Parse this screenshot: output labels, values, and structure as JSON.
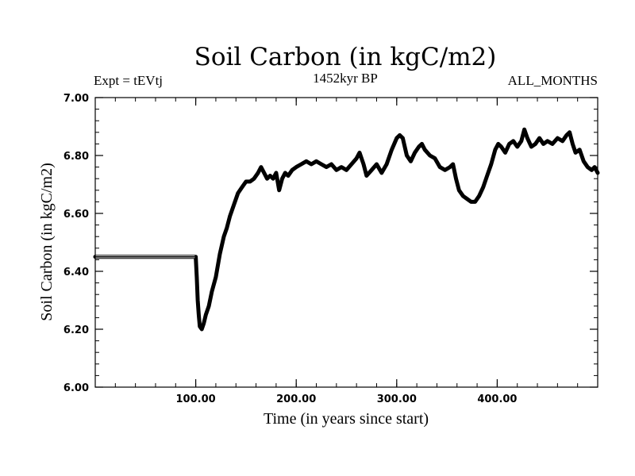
{
  "chart_data": {
    "type": "line",
    "title": "Soil Carbon (in kgC/m2)",
    "subtitle_left": "Expt = tEVtj",
    "subtitle_center": "1452kyr BP",
    "subtitle_right": "ALL_MONTHS",
    "xlabel": "Time (in years since start)",
    "ylabel": "Soil Carbon (in kgC/m2)",
    "xlim": [
      0,
      500
    ],
    "ylim": [
      6.0,
      7.0
    ],
    "x_ticks": [
      100,
      200,
      300,
      400
    ],
    "x_tick_labels": [
      "100.00",
      "200.00",
      "300.00",
      "400.00"
    ],
    "y_ticks": [
      6.0,
      6.2,
      6.4,
      6.6,
      6.8,
      7.0
    ],
    "y_tick_labels": [
      "6.00",
      "6.20",
      "6.40",
      "6.60",
      "6.80",
      "7.00"
    ],
    "x_minor_step": 20,
    "y_minor_step": 0.04,
    "line_color": "#000000",
    "series": [
      {
        "name": "Soil Carbon",
        "x": [
          0,
          50,
          99,
          100,
          101,
          102,
          103,
          104,
          106,
          108,
          110,
          113,
          116,
          120,
          124,
          128,
          131,
          134,
          138,
          142,
          146,
          150,
          154,
          158,
          162,
          165,
          168,
          171,
          174,
          177,
          180,
          183,
          186,
          189,
          192,
          196,
          200,
          205,
          210,
          215,
          220,
          225,
          230,
          235,
          240,
          245,
          250,
          255,
          260,
          263,
          267,
          270,
          275,
          280,
          285,
          290,
          295,
          300,
          303,
          306,
          310,
          314,
          318,
          322,
          325,
          328,
          333,
          338,
          343,
          348,
          353,
          356,
          359,
          362,
          366,
          370,
          374,
          378,
          382,
          386,
          390,
          394,
          398,
          401,
          404,
          408,
          412,
          416,
          420,
          424,
          427,
          430,
          434,
          438,
          442,
          446,
          450,
          455,
          460,
          465,
          469,
          472,
          475,
          478,
          482,
          486,
          490,
          494,
          497,
          500
        ],
        "y": [
          6.45,
          6.45,
          6.45,
          6.45,
          6.38,
          6.3,
          6.25,
          6.21,
          6.2,
          6.22,
          6.25,
          6.28,
          6.33,
          6.38,
          6.46,
          6.52,
          6.55,
          6.59,
          6.63,
          6.67,
          6.69,
          6.71,
          6.71,
          6.72,
          6.74,
          6.76,
          6.74,
          6.72,
          6.73,
          6.72,
          6.74,
          6.68,
          6.72,
          6.74,
          6.73,
          6.75,
          6.76,
          6.77,
          6.78,
          6.77,
          6.78,
          6.77,
          6.76,
          6.77,
          6.75,
          6.76,
          6.75,
          6.77,
          6.79,
          6.81,
          6.77,
          6.73,
          6.75,
          6.77,
          6.74,
          6.77,
          6.82,
          6.86,
          6.87,
          6.86,
          6.8,
          6.78,
          6.81,
          6.83,
          6.84,
          6.82,
          6.8,
          6.79,
          6.76,
          6.75,
          6.76,
          6.77,
          6.72,
          6.68,
          6.66,
          6.65,
          6.64,
          6.64,
          6.66,
          6.69,
          6.73,
          6.77,
          6.82,
          6.84,
          6.83,
          6.81,
          6.84,
          6.85,
          6.83,
          6.85,
          6.89,
          6.86,
          6.83,
          6.84,
          6.86,
          6.84,
          6.85,
          6.84,
          6.86,
          6.85,
          6.87,
          6.88,
          6.84,
          6.81,
          6.82,
          6.78,
          6.76,
          6.75,
          6.76,
          6.74
        ]
      }
    ]
  }
}
